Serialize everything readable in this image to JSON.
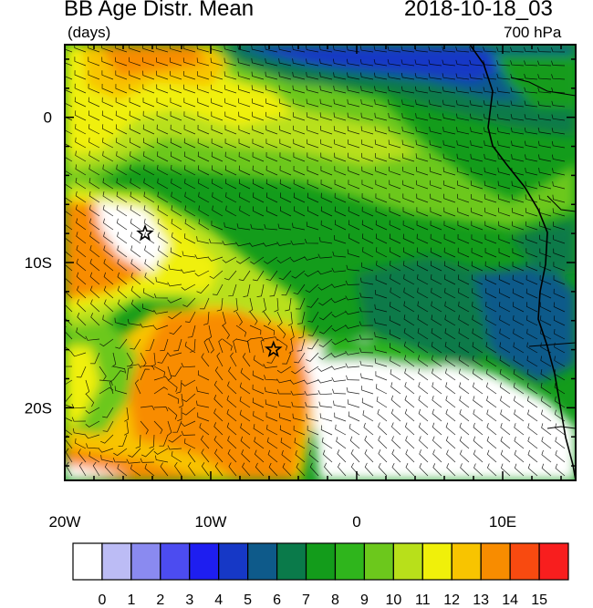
{
  "header": {
    "title": "BB Age Distr. Mean",
    "units": "(days)",
    "datetime": "2018-10-18_03",
    "level": "700 hPa"
  },
  "map": {
    "lon_range": [
      -20,
      15
    ],
    "lat_range": [
      -25,
      5
    ],
    "x_ticks": [
      {
        "lon": -20,
        "label": "20W"
      },
      {
        "lon": -10,
        "label": "10W"
      },
      {
        "lon": 0,
        "label": "0"
      },
      {
        "lon": 10,
        "label": "10E"
      }
    ],
    "y_ticks": [
      {
        "lat": 0,
        "label": "0"
      },
      {
        "lat": -10,
        "label": "10S"
      },
      {
        "lat": -20,
        "label": "20S"
      }
    ],
    "markers": [
      {
        "name": "star",
        "lon": -14.5,
        "lat": -8.0
      },
      {
        "name": "star",
        "lon": -5.7,
        "lat": -16.0
      }
    ],
    "overlay": "wind barbs"
  },
  "colorbar": {
    "labels": [
      "0",
      "1",
      "2",
      "3",
      "4",
      "5",
      "6",
      "7",
      "8",
      "9",
      "10",
      "11",
      "12",
      "13",
      "14",
      "15"
    ],
    "colors": [
      "#ffffff",
      "#bcbcf5",
      "#8a8af0",
      "#4c4cf0",
      "#1e1ef0",
      "#1638c6",
      "#0e5a8a",
      "#0a7a4a",
      "#139c1b",
      "#2fb51c",
      "#6cc81c",
      "#b8e01a",
      "#f0f00a",
      "#f8c400",
      "#f88c00",
      "#f84a10",
      "#f81e1e"
    ]
  }
}
